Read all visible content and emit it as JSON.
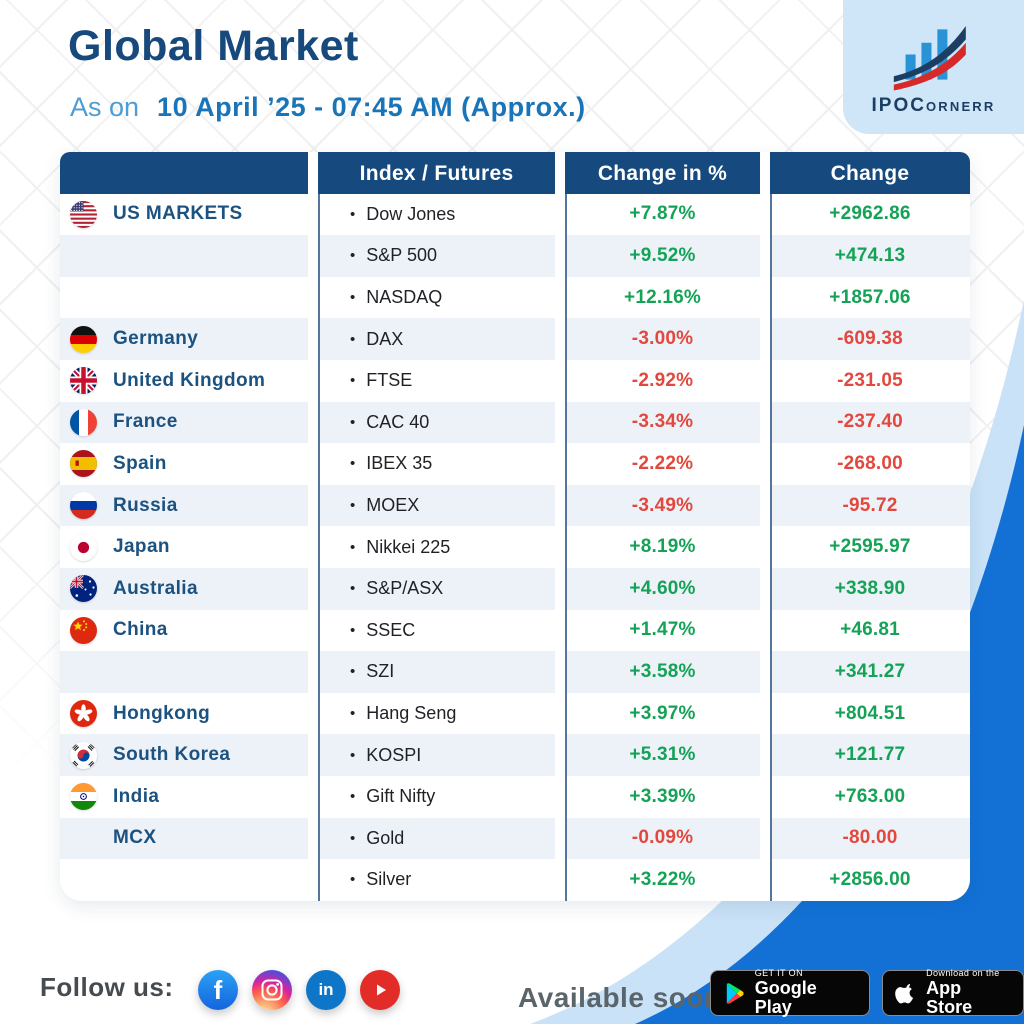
{
  "page": {
    "title": "Global Market",
    "as_on": "As on",
    "datetime": "10 April ’25 - 07:45 AM (Approx.)"
  },
  "logo": {
    "brand_main": "IPOC",
    "brand_sub": "ORNERR"
  },
  "table": {
    "headers": {
      "market": "",
      "index": "Index / Futures",
      "change_pct": "Change in %",
      "change": "Change"
    },
    "rows": [
      {
        "flag": "us",
        "market": "US MARKETS",
        "index": "Dow Jones",
        "change_pct": "+7.87%",
        "change": "+2962.86",
        "direction": "up"
      },
      {
        "flag": "none",
        "market": "",
        "index": "S&P 500",
        "change_pct": "+9.52%",
        "change": "+474.13",
        "direction": "up"
      },
      {
        "flag": "none",
        "market": "",
        "index": "NASDAQ",
        "change_pct": "+12.16%",
        "change": "+1857.06",
        "direction": "up"
      },
      {
        "flag": "de",
        "market": "Germany",
        "index": "DAX",
        "change_pct": "-3.00%",
        "change": "-609.38",
        "direction": "down"
      },
      {
        "flag": "uk",
        "market": "United Kingdom",
        "index": "FTSE",
        "change_pct": "-2.92%",
        "change": "-231.05",
        "direction": "down"
      },
      {
        "flag": "fr",
        "market": "France",
        "index": "CAC 40",
        "change_pct": "-3.34%",
        "change": "-237.40",
        "direction": "down"
      },
      {
        "flag": "es",
        "market": "Spain",
        "index": "IBEX 35",
        "change_pct": "-2.22%",
        "change": "-268.00",
        "direction": "down"
      },
      {
        "flag": "ru",
        "market": "Russia",
        "index": "MOEX",
        "change_pct": "-3.49%",
        "change": "-95.72",
        "direction": "down"
      },
      {
        "flag": "jp",
        "market": "Japan",
        "index": "Nikkei 225",
        "change_pct": "+8.19%",
        "change": "+2595.97",
        "direction": "up"
      },
      {
        "flag": "au",
        "market": "Australia",
        "index": "S&P/ASX",
        "change_pct": "+4.60%",
        "change": "+338.90",
        "direction": "up"
      },
      {
        "flag": "cn",
        "market": "China",
        "index": "SSEC",
        "change_pct": "+1.47%",
        "change": "+46.81",
        "direction": "up"
      },
      {
        "flag": "none",
        "market": "",
        "index": "SZI",
        "change_pct": "+3.58%",
        "change": "+341.27",
        "direction": "up"
      },
      {
        "flag": "hk",
        "market": "Hongkong",
        "index": "Hang Seng",
        "change_pct": "+3.97%",
        "change": "+804.51",
        "direction": "up"
      },
      {
        "flag": "kr",
        "market": "South Korea",
        "index": "KOSPI",
        "change_pct": "+5.31%",
        "change": "+121.77",
        "direction": "up"
      },
      {
        "flag": "in",
        "market": "India",
        "index": "Gift Nifty",
        "change_pct": "+3.39%",
        "change": "+763.00",
        "direction": "up"
      },
      {
        "flag": "none",
        "market": "MCX",
        "index": "Gold",
        "change_pct": "-0.09%",
        "change": "-80.00",
        "direction": "down"
      },
      {
        "flag": "none",
        "market": "",
        "index": "Silver",
        "change_pct": "+3.22%",
        "change": "+2856.00",
        "direction": "up"
      }
    ]
  },
  "footer": {
    "follow_label": "Follow us:",
    "available_label": "Available soon",
    "social": [
      "facebook",
      "instagram",
      "linkedin",
      "youtube"
    ],
    "badges": {
      "google_play": {
        "tagline": "GET IT ON",
        "name": "Google Play"
      },
      "app_store": {
        "tagline": "Download on the",
        "name": "App Store"
      }
    }
  },
  "colors": {
    "positive": "#14a356",
    "negative": "#e2483d",
    "header_navy": "#16497d",
    "row_alt": "#edf1f8",
    "accent_blue": "#1371d6",
    "light_blue": "#c9e2f7",
    "title_navy": "#17497c",
    "date_blue": "#1a74b8",
    "logo_navy": "#1c3e63"
  }
}
